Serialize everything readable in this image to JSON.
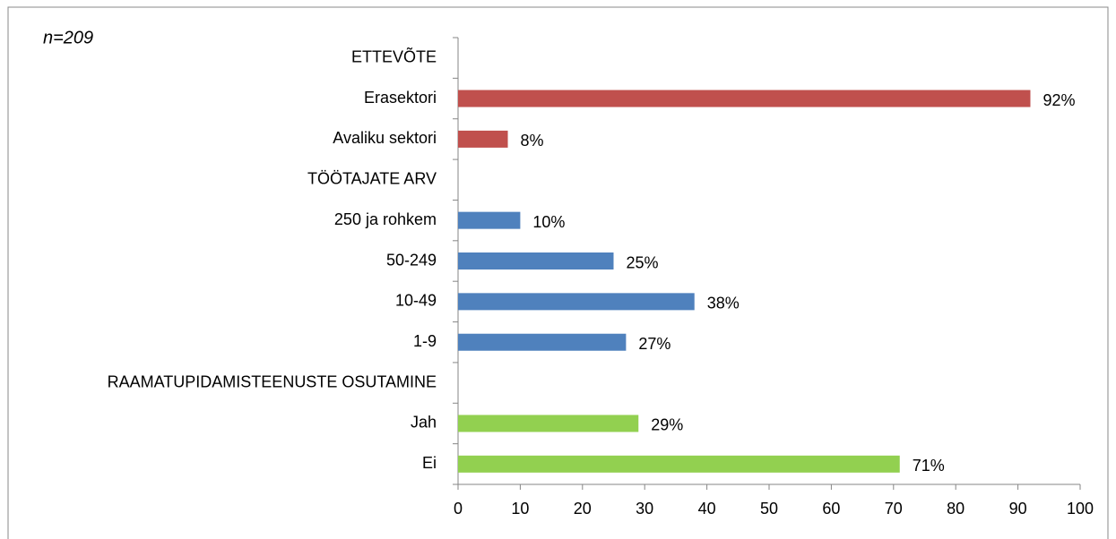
{
  "chart_data": {
    "type": "barh",
    "annotation": "n=209",
    "categories": [
      "ETTEVÕTE",
      "Erasektori",
      "Avaliku sektori",
      "TÖÖTAJATE ARV",
      "250 ja rohkem",
      "50-249",
      "10-49",
      "1-9",
      "RAAMATUPIDAMISTEENUSTE OSUTAMINE",
      "Jah",
      "Ei"
    ],
    "values": [
      null,
      92,
      8,
      null,
      10,
      25,
      38,
      27,
      null,
      29,
      71
    ],
    "value_labels": [
      null,
      "92%",
      "8%",
      null,
      "10%",
      "25%",
      "38%",
      "27%",
      null,
      "29%",
      "71%"
    ],
    "colors": [
      null,
      "#c0504d",
      "#c0504d",
      null,
      "#4f81bd",
      "#4f81bd",
      "#4f81bd",
      "#4f81bd",
      null,
      "#92d050",
      "#92d050"
    ],
    "xlim": [
      0,
      100
    ],
    "xticks": [
      0,
      10,
      20,
      30,
      40,
      50,
      60,
      70,
      80,
      90,
      100
    ],
    "grid": false
  }
}
